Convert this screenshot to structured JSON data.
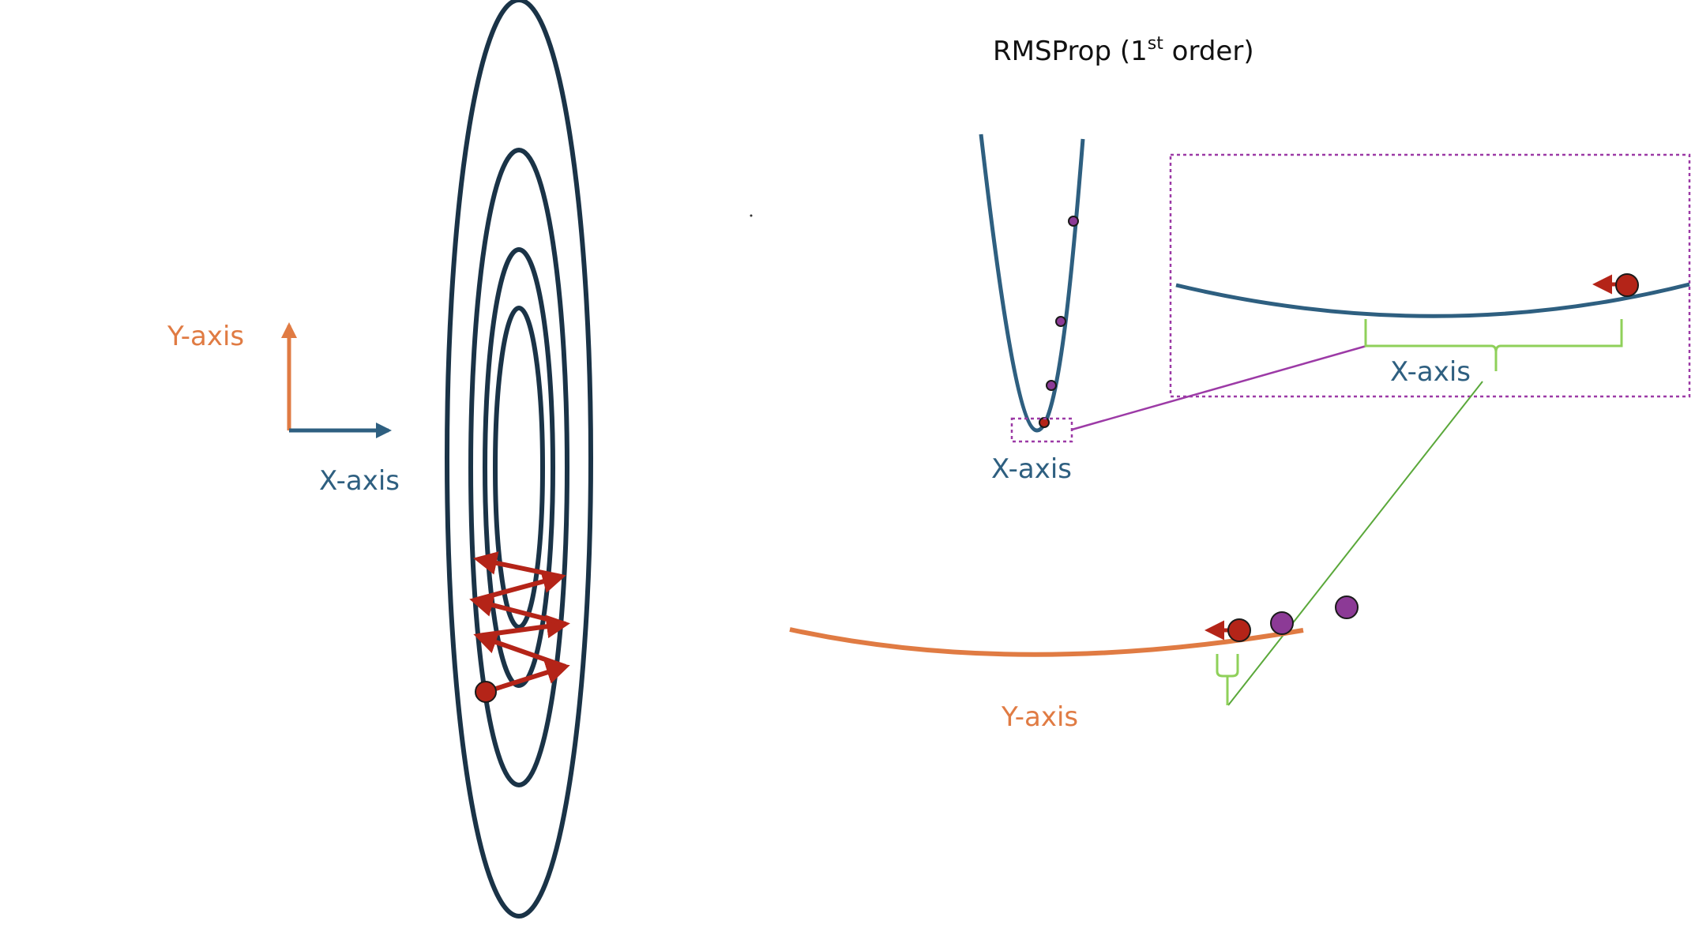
{
  "title": {
    "main": "RMSProp (1",
    "superscript": "st",
    "rest": " order)"
  },
  "axes_legend": {
    "y_label": "Y-axis",
    "x_label": "X-axis"
  },
  "x_curve_label": "X-axis",
  "zoom_label": "X-axis",
  "y_curve_label": "Y-axis",
  "colors": {
    "contour": "#1a3347",
    "x_axis": "#2e5f80",
    "y_axis": "#e07b43",
    "arrow_red": "#b42418",
    "point_purple": "#8c3a96",
    "zoom_box": "#9c3aa6",
    "green": "#8fd05a",
    "connector_green": "#5aa83a"
  },
  "icons": [
    "contour-ellipse",
    "zigzag-arrow-path",
    "ball-icon",
    "left-arrow-icon",
    "brace-icon"
  ]
}
